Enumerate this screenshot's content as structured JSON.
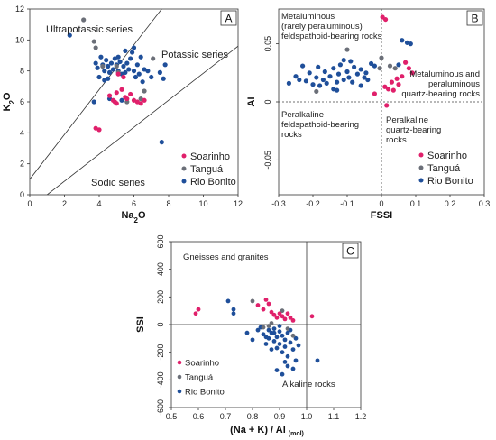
{
  "colors": {
    "Soarinho": "#e0206b",
    "Tanguá": "#6b6f78",
    "Rio Bonito": "#1f4f9a"
  },
  "chart_data": [
    {
      "id": "A",
      "type": "scatter",
      "panel_label": "A",
      "xlabel_main": "Na",
      "xlabel_sub": "2",
      "xlabel_end": "O",
      "ylabel_main": "K",
      "ylabel_sub": "2",
      "ylabel_end": "O",
      "xlim": [
        0,
        12
      ],
      "ylim": [
        0,
        12
      ],
      "xticks": [
        0,
        2,
        4,
        6,
        8,
        10,
        12
      ],
      "yticks": [
        0,
        2,
        4,
        6,
        8,
        10,
        12
      ],
      "tick_labels_x": [
        "0",
        "2",
        "4",
        "6",
        "8",
        "10",
        "12"
      ],
      "tick_labels_y": [
        "0",
        "2",
        "4",
        "6",
        "8",
        "10",
        "12"
      ],
      "boundaries": [
        [
          [
            0,
            1
          ],
          [
            7.6,
            12
          ]
        ],
        [
          [
            1,
            0
          ],
          [
            12,
            9.6
          ]
        ]
      ],
      "annotations": [
        "Ultrapotassic series",
        "Potassic series",
        "Sodic series"
      ],
      "legend": [
        "Soarinho",
        "Tanguá",
        "Rio Bonito"
      ],
      "series": [
        {
          "name": "Soarinho",
          "points": [
            [
              3.8,
              4.3
            ],
            [
              4.0,
              4.2
            ],
            [
              4.6,
              6.4
            ],
            [
              4.8,
              6.1
            ],
            [
              5.0,
              5.9
            ],
            [
              5.0,
              6.6
            ],
            [
              5.3,
              6.8
            ],
            [
              5.5,
              6.3
            ],
            [
              5.8,
              6.5
            ],
            [
              6.0,
              6.1
            ],
            [
              6.2,
              6.0
            ],
            [
              6.4,
              5.9
            ],
            [
              6.6,
              6.1
            ],
            [
              5.1,
              7.8
            ],
            [
              5.4,
              7.6
            ],
            [
              4.9,
              6.0
            ],
            [
              5.6,
              6.2
            ]
          ]
        },
        {
          "name": "Tanguá",
          "points": [
            [
              3.1,
              11.3
            ],
            [
              3.7,
              9.9
            ],
            [
              3.8,
              9.5
            ],
            [
              5.0,
              8.3
            ],
            [
              5.1,
              7.9
            ],
            [
              5.6,
              6.0
            ],
            [
              6.6,
              6.7
            ],
            [
              6.4,
              6.2
            ],
            [
              4.2,
              8.3
            ],
            [
              7.1,
              8.8
            ]
          ]
        },
        {
          "name": "Rio Bonito",
          "points": [
            [
              2.3,
              10.3
            ],
            [
              3.8,
              8.5
            ],
            [
              3.9,
              8.2
            ],
            [
              4.0,
              7.6
            ],
            [
              4.1,
              8.9
            ],
            [
              4.2,
              8.4
            ],
            [
              4.3,
              8.0
            ],
            [
              4.4,
              8.7
            ],
            [
              4.5,
              8.3
            ],
            [
              4.6,
              7.9
            ],
            [
              4.7,
              8.5
            ],
            [
              4.8,
              8.1
            ],
            [
              4.9,
              8.8
            ],
            [
              5.0,
              8.4
            ],
            [
              5.1,
              8.0
            ],
            [
              5.2,
              8.6
            ],
            [
              5.3,
              7.8
            ],
            [
              5.4,
              8.3
            ],
            [
              5.5,
              7.9
            ],
            [
              5.6,
              8.5
            ],
            [
              5.7,
              8.1
            ],
            [
              5.8,
              8.8
            ],
            [
              5.9,
              9.2
            ],
            [
              6.0,
              8.0
            ],
            [
              6.1,
              7.6
            ],
            [
              6.2,
              8.4
            ],
            [
              6.4,
              8.9
            ],
            [
              6.5,
              7.3
            ],
            [
              6.6,
              8.1
            ],
            [
              6.8,
              8.0
            ],
            [
              7.0,
              7.6
            ],
            [
              7.5,
              7.9
            ],
            [
              7.7,
              7.5
            ],
            [
              7.8,
              8.4
            ],
            [
              6.0,
              9.5
            ],
            [
              5.5,
              9.3
            ],
            [
              3.7,
              6.0
            ],
            [
              4.6,
              6.2
            ],
            [
              5.3,
              6.1
            ],
            [
              7.6,
              3.4
            ],
            [
              4.3,
              7.4
            ],
            [
              5.1,
              8.9
            ],
            [
              4.5,
              7.5
            ],
            [
              6.3,
              7.8
            ]
          ]
        }
      ]
    },
    {
      "id": "B",
      "type": "scatter",
      "panel_label": "B",
      "xlabel": "FSSI",
      "ylabel": "AI",
      "xlim": [
        -0.3,
        0.3
      ],
      "ylim": [
        -0.08,
        0.08
      ],
      "xticks": [
        -0.3,
        -0.2,
        -0.1,
        0,
        0.1,
        0.2,
        0.3
      ],
      "yticks": [
        -0.05,
        0,
        0.05
      ],
      "tick_labels_x": [
        "-0.3",
        "-0.2",
        "-0.1",
        "0",
        "0.1",
        "0.2",
        "0.3"
      ],
      "tick_labels_y": [
        "-0.05",
        "0",
        "0.05"
      ],
      "annotations": {
        "top_left": [
          "Metaluminous",
          "(rarely peraluminous)",
          "feldspathoid-bearing rocks"
        ],
        "top_right": [
          "Metaluminous and",
          "peraluminous",
          "quartz-bearing rocks"
        ],
        "bottom_left": [
          "Peralkaline",
          "feldspathoid-bearing",
          "rocks"
        ],
        "bottom_right": [
          "Peralkaline",
          "quartz-bearing",
          "rocks"
        ]
      },
      "legend": [
        "Soarinho",
        "Tanguá",
        "Rio Bonito"
      ],
      "series": [
        {
          "name": "Soarinho",
          "points": [
            [
              0.003,
              0.073
            ],
            [
              0.012,
              0.071
            ],
            [
              0.01,
              0.013
            ],
            [
              0.02,
              0.011
            ],
            [
              0.03,
              0.017
            ],
            [
              0.035,
              0.01
            ],
            [
              0.045,
              0.02
            ],
            [
              0.06,
              0.022
            ],
            [
              0.07,
              0.034
            ],
            [
              0.08,
              0.029
            ],
            [
              0.09,
              0.025
            ],
            [
              -0.02,
              0.007
            ],
            [
              0.015,
              -0.003
            ],
            [
              0.05,
              0.015
            ]
          ]
        },
        {
          "name": "Tanguá",
          "points": [
            [
              -0.1,
              0.045
            ],
            [
              0.0,
              0.038
            ],
            [
              0.025,
              0.031
            ],
            [
              0.04,
              0.029
            ],
            [
              -0.005,
              0.029
            ],
            [
              -0.19,
              0.009
            ]
          ]
        },
        {
          "name": "Rio Bonito",
          "points": [
            [
              -0.27,
              0.016
            ],
            [
              -0.25,
              0.022
            ],
            [
              -0.24,
              0.019
            ],
            [
              -0.23,
              0.031
            ],
            [
              -0.22,
              0.018
            ],
            [
              -0.21,
              0.025
            ],
            [
              -0.2,
              0.015
            ],
            [
              -0.19,
              0.021
            ],
            [
              -0.185,
              0.03
            ],
            [
              -0.18,
              0.014
            ],
            [
              -0.17,
              0.019
            ],
            [
              -0.165,
              0.026
            ],
            [
              -0.16,
              0.016
            ],
            [
              -0.15,
              0.022
            ],
            [
              -0.14,
              0.029
            ],
            [
              -0.13,
              0.017
            ],
            [
              -0.125,
              0.024
            ],
            [
              -0.12,
              0.032
            ],
            [
              -0.11,
              0.019
            ],
            [
              -0.1,
              0.026
            ],
            [
              -0.095,
              0.021
            ],
            [
              -0.09,
              0.035
            ],
            [
              -0.085,
              0.017
            ],
            [
              -0.08,
              0.03
            ],
            [
              -0.07,
              0.024
            ],
            [
              -0.06,
              0.028
            ],
            [
              -0.05,
              0.021
            ],
            [
              -0.045,
              0.025
            ],
            [
              -0.04,
              0.019
            ],
            [
              -0.03,
              0.033
            ],
            [
              -0.02,
              0.031
            ],
            [
              -0.11,
              0.036
            ],
            [
              -0.13,
              0.01
            ],
            [
              0.06,
              0.053
            ],
            [
              0.075,
              0.051
            ],
            [
              0.085,
              0.05
            ],
            [
              0.05,
              0.032
            ],
            [
              -0.14,
              0.011
            ],
            [
              -0.06,
              0.014
            ]
          ]
        }
      ]
    },
    {
      "id": "C",
      "type": "scatter",
      "panel_label": "C",
      "xlabel_main": "(Na + K) / Al",
      "xlabel_sub": "(mol)",
      "ylabel": "SSI",
      "xlim": [
        0.5,
        1.2
      ],
      "ylim": [
        -600,
        600
      ],
      "xticks": [
        0.5,
        0.6,
        0.7,
        0.8,
        0.9,
        1.0,
        1.1,
        1.2
      ],
      "yticks": [
        -600,
        -400,
        -200,
        0,
        200,
        400,
        600
      ],
      "tick_labels_x": [
        "0.5",
        "0.6",
        "0.7",
        "0.8",
        "0.9",
        "1.0",
        "1.1",
        "1.2"
      ],
      "tick_labels_y": [
        "-600",
        "-400",
        "-200",
        "0",
        "200",
        "400",
        "600"
      ],
      "annotations": [
        "Gneisses and granites",
        "Alkaline rocks"
      ],
      "legend": [
        "Soarinho",
        "Tanguá",
        "Rio Bonito"
      ],
      "series": [
        {
          "name": "Soarinho",
          "points": [
            [
              0.59,
              80
            ],
            [
              0.6,
              110
            ],
            [
              0.82,
              140
            ],
            [
              0.84,
              110
            ],
            [
              0.85,
              180
            ],
            [
              0.86,
              150
            ],
            [
              0.87,
              90
            ],
            [
              0.88,
              70
            ],
            [
              0.89,
              50
            ],
            [
              0.9,
              80
            ],
            [
              0.91,
              60
            ],
            [
              0.92,
              40
            ],
            [
              0.93,
              80
            ],
            [
              0.94,
              50
            ],
            [
              0.95,
              30
            ],
            [
              1.02,
              60
            ]
          ]
        },
        {
          "name": "Tanguá",
          "points": [
            [
              0.84,
              -20
            ],
            [
              0.86,
              -10
            ],
            [
              0.87,
              10
            ],
            [
              0.91,
              100
            ],
            [
              0.93,
              -30
            ],
            [
              0.95,
              -80
            ],
            [
              0.8,
              170
            ]
          ]
        },
        {
          "name": "Rio Bonito",
          "points": [
            [
              0.71,
              170
            ],
            [
              0.73,
              110
            ],
            [
              0.73,
              80
            ],
            [
              0.78,
              -60
            ],
            [
              0.8,
              -110
            ],
            [
              0.82,
              -40
            ],
            [
              0.83,
              -20
            ],
            [
              0.84,
              -70
            ],
            [
              0.85,
              -140
            ],
            [
              0.86,
              -40
            ],
            [
              0.86,
              -100
            ],
            [
              0.87,
              -60
            ],
            [
              0.88,
              -120
            ],
            [
              0.88,
              -30
            ],
            [
              0.89,
              -90
            ],
            [
              0.89,
              -170
            ],
            [
              0.9,
              -50
            ],
            [
              0.9,
              -140
            ],
            [
              0.91,
              -80
            ],
            [
              0.91,
              -200
            ],
            [
              0.92,
              -110
            ],
            [
              0.92,
              -160
            ],
            [
              0.93,
              -60
            ],
            [
              0.93,
              -230
            ],
            [
              0.94,
              -130
            ],
            [
              0.95,
              -180
            ],
            [
              0.96,
              -100
            ],
            [
              0.96,
              -260
            ],
            [
              0.97,
              -150
            ],
            [
              0.89,
              -330
            ],
            [
              0.91,
              -360
            ],
            [
              0.93,
              -300
            ],
            [
              0.95,
              -320
            ],
            [
              0.92,
              -270
            ],
            [
              1.04,
              -260
            ],
            [
              0.87,
              -180
            ],
            [
              0.85,
              -90
            ],
            [
              0.9,
              -10
            ],
            [
              0.94,
              -40
            ],
            [
              0.88,
              -60
            ]
          ]
        }
      ]
    }
  ]
}
